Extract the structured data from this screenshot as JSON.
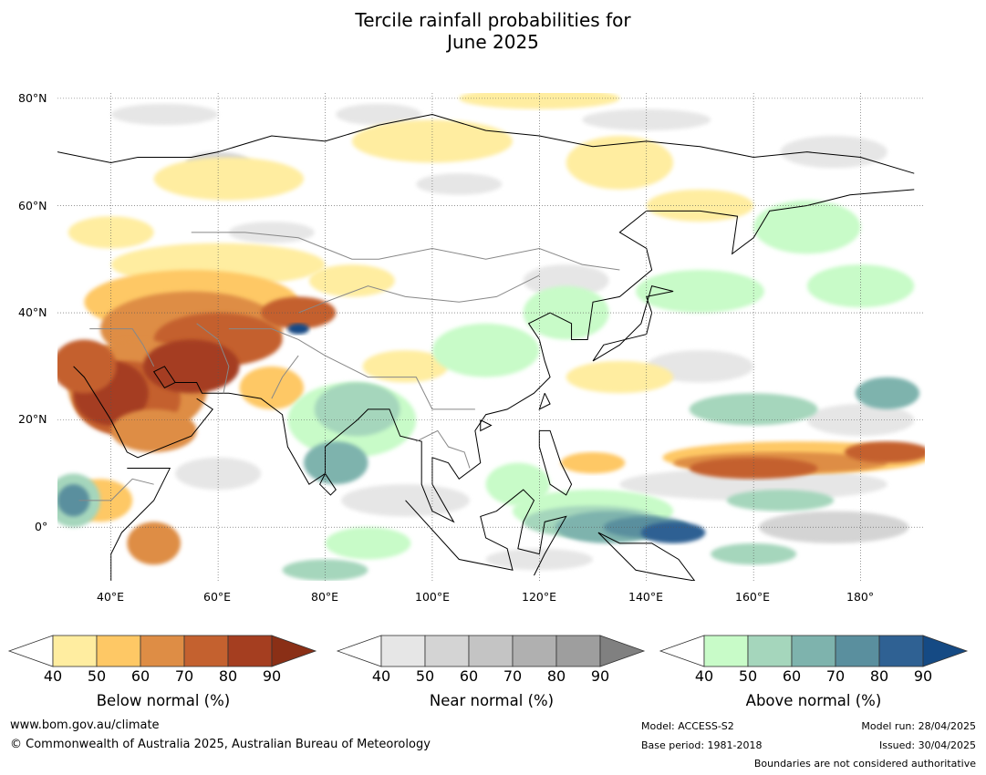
{
  "title": {
    "line1": "Tercile rainfall probabilities for",
    "line2": "June 2025"
  },
  "map": {
    "lat_labels": [
      "80°N",
      "60°N",
      "40°N",
      "20°N",
      "0°"
    ],
    "lon_labels": [
      "40°E",
      "60°E",
      "80°E",
      "100°E",
      "120°E",
      "140°E",
      "160°E",
      "180°"
    ],
    "lon_range": [
      30,
      192
    ],
    "lat_range": [
      -10,
      81
    ]
  },
  "colorbars": [
    {
      "name": "below",
      "title": "Below normal (%)",
      "ticks": [
        "40",
        "50",
        "60",
        "70",
        "80",
        "90"
      ],
      "colors": [
        "#ffffff",
        "#ffeda0",
        "#fec865",
        "#de8d45",
        "#c4612f",
        "#a53e20",
        "#8a2f16"
      ]
    },
    {
      "name": "near",
      "title": "Near normal (%)",
      "ticks": [
        "40",
        "50",
        "60",
        "70",
        "80",
        "90"
      ],
      "colors": [
        "#ffffff",
        "#e6e6e6",
        "#d4d4d4",
        "#c4c4c4",
        "#b0b0b0",
        "#9e9e9e",
        "#808080"
      ]
    },
    {
      "name": "above",
      "title": "Above normal (%)",
      "ticks": [
        "40",
        "50",
        "60",
        "70",
        "80",
        "90"
      ],
      "colors": [
        "#ffffff",
        "#c8fbc8",
        "#a5d6bc",
        "#7eb3ad",
        "#5a8f9e",
        "#2f6193",
        "#154a84"
      ]
    }
  ],
  "footer": {
    "website": "www.bom.gov.au/climate",
    "copyright": "© Commonwealth of Australia 2025, Australian Bureau of Meteorology",
    "model": "Model: ACCESS-S2",
    "base_period": "Base period: 1981-2018",
    "model_run": "Model run: 28/04/2025",
    "issued": "Issued: 30/04/2025",
    "disclaimer": "Boundaries are not considered authoritative"
  }
}
